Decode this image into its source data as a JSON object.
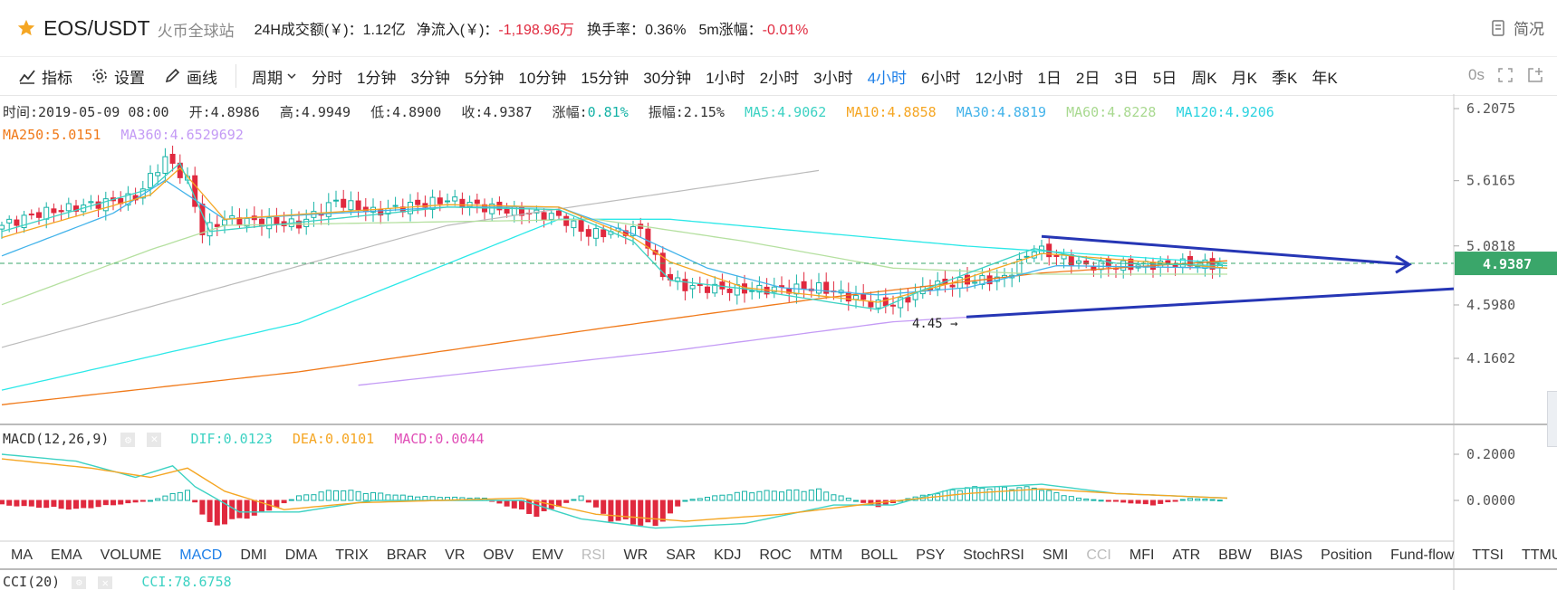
{
  "header": {
    "pair": "EOS/USDT",
    "exchange": "火币全球站",
    "vol_label": "24H成交额(￥)：",
    "vol_value": "1.12亿",
    "inflow_label": "净流入(￥)：",
    "inflow_value": "-1,198.96万",
    "turnover_label": "换手率：",
    "turnover_value": "0.36%",
    "change5m_label": "5m涨幅：",
    "change5m_value": "-0.01%",
    "brief_label": "简况"
  },
  "toolbar": {
    "indicator": "指标",
    "settings": "设置",
    "draw": "画线",
    "period": "周期",
    "periods": [
      "分时",
      "1分钟",
      "3分钟",
      "5分钟",
      "10分钟",
      "15分钟",
      "30分钟",
      "1小时",
      "2小时",
      "3小时",
      "4小时",
      "6小时",
      "12小时",
      "1日",
      "2日",
      "3日",
      "5日",
      "周K",
      "月K",
      "季K",
      "年K"
    ],
    "active_period": "4小时",
    "timer": "0s"
  },
  "info": {
    "time": "时间:2019-05-09 08:00",
    "open": "开:4.8986",
    "high": "高:4.9949",
    "low": "低:4.8900",
    "close": "收:4.9387",
    "change_label": "涨幅:",
    "change_value": "0.81%",
    "amp": "振幅:2.15%",
    "ma5": "MA5:4.9062",
    "ma10": "MA10:4.8858",
    "ma30": "MA30:4.8819",
    "ma60": "MA60:4.8228",
    "ma120": "MA120:4.9206",
    "ma250": "MA250:5.0151",
    "ma360": "MA360:4.6529692"
  },
  "colors": {
    "up": "#15b2a6",
    "down": "#e0293e",
    "ma5": "#3dd2c3",
    "ma10": "#f5a623",
    "ma30": "#42b3ea",
    "ma60": "#b5e0a0",
    "ma120": "#2be8e8",
    "ma250": "#f07a1a",
    "ma360": "#c49bf5",
    "trend": "#2636b5",
    "price_tag": "#3aa66a"
  },
  "chart_data": {
    "type": "candlestick",
    "price_axis_ticks": [
      "6.2075",
      "5.6165",
      "5.0818",
      "4.5980",
      "4.1602"
    ],
    "last_price": "4.9387",
    "low_marker": "4.45",
    "macd_axis_ticks": [
      "0.2000",
      "0.0000"
    ],
    "macd_info": {
      "title": "MACD(12,26,9)",
      "dif": "DIF:0.0123",
      "dea": "DEA:0.0101",
      "macd": "MACD:0.0044"
    },
    "cci_info": {
      "title": "CCI(20)",
      "cci": "CCI:78.6758"
    }
  },
  "indicators": [
    "MA",
    "EMA",
    "VOLUME",
    "MACD",
    "DMI",
    "DMA",
    "TRIX",
    "BRAR",
    "VR",
    "OBV",
    "EMV",
    "RSI",
    "WR",
    "SAR",
    "KDJ",
    "ROC",
    "MTM",
    "BOLL",
    "PSY",
    "StochRSI",
    "SMI",
    "CCI",
    "MFI",
    "ATR",
    "BBW",
    "BIAS",
    "Position",
    "Fund-flow",
    "TTSI",
    "TTMU"
  ],
  "active_indicator": "MACD",
  "dim_indicators": [
    "RSI",
    "CCI"
  ]
}
